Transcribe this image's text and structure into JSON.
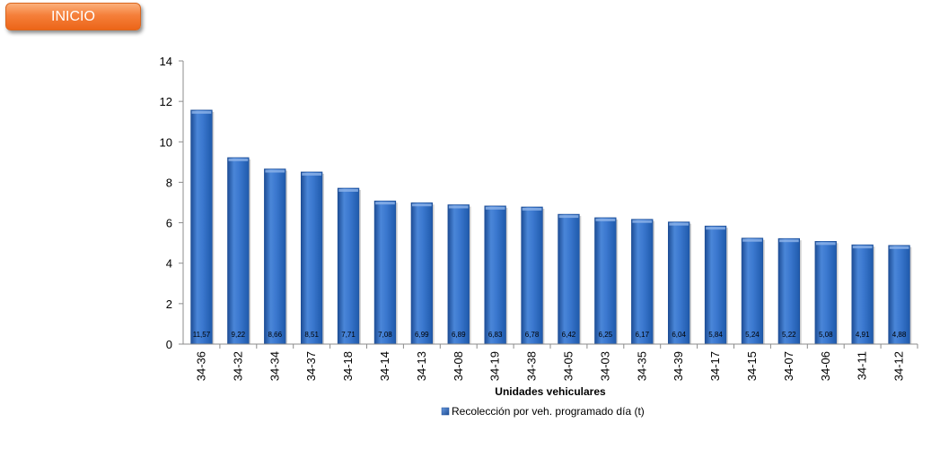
{
  "button": {
    "label": "INICIO"
  },
  "colors": {
    "bar": "#2f6fca",
    "bar_dark": "#1d4d96",
    "bar_light": "#6a9be0",
    "button": "#f57f3a"
  },
  "chart_data": {
    "type": "bar",
    "categories": [
      "34-36",
      "34-32",
      "34-34",
      "34-37",
      "34-18",
      "34-14",
      "34-13",
      "34-08",
      "34-19",
      "34-38",
      "34-05",
      "34-03",
      "34-35",
      "34-39",
      "34-17",
      "34-15",
      "34-07",
      "34-06",
      "34-11",
      "34-12"
    ],
    "series": [
      {
        "name": "Recolección por veh. programado día (t)",
        "values": [
          11.57,
          9.22,
          8.66,
          8.51,
          7.71,
          7.08,
          6.99,
          6.89,
          6.83,
          6.78,
          6.42,
          6.25,
          6.17,
          6.04,
          5.84,
          5.24,
          5.22,
          5.08,
          4.91,
          4.88
        ],
        "data_labels": [
          "11,57",
          "9,22",
          "8,66",
          "8,51",
          "7,71",
          "7,08",
          "6,99",
          "6,89",
          "6,83",
          "6,78",
          "6,42",
          "6,25",
          "6,17",
          "6,04",
          "5,84",
          "5,24",
          "5,22",
          "5,08",
          "4,91",
          "4,88"
        ]
      }
    ],
    "xlabel": "Unidades vehiculares",
    "ylabel": "",
    "ylim": [
      0,
      14
    ],
    "yticks": [
      "0",
      "2",
      "4",
      "6",
      "8",
      "10",
      "12",
      "14"
    ],
    "grid": false,
    "legend_position": "bottom"
  }
}
